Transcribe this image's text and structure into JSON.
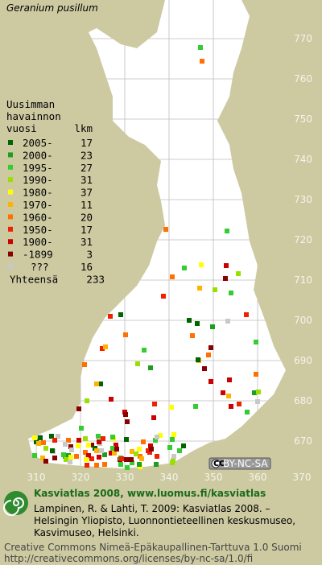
{
  "title": "Geranium pusillum",
  "legend": {
    "heading": [
      "Uusimman",
      "havainnon",
      "vuosi"
    ],
    "count_heading": "lkm",
    "rows": [
      {
        "label": "2005-",
        "count": 17,
        "color": "#006400"
      },
      {
        "label": "2000-",
        "count": 23,
        "color": "#1e9e1e"
      },
      {
        "label": "1995-",
        "count": 27,
        "color": "#33cc33"
      },
      {
        "label": "1990-",
        "count": 31,
        "color": "#99e000"
      },
      {
        "label": "1980-",
        "count": 37,
        "color": "#ffff00"
      },
      {
        "label": "1970-",
        "count": 11,
        "color": "#ffb300"
      },
      {
        "label": "1960-",
        "count": 20,
        "color": "#ff7000"
      },
      {
        "label": "1950-",
        "count": 17,
        "color": "#ee2200"
      },
      {
        "label": "1900-",
        "count": 31,
        "color": "#cc0000"
      },
      {
        "label": "-1899",
        "count": 3,
        "color": "#880000"
      },
      {
        "label": "???",
        "count": 16,
        "color": "#c8c8c8"
      }
    ],
    "total_label": "Yhteensä",
    "total": 233
  },
  "xticks": [
    310,
    320,
    330,
    340,
    350,
    360,
    370
  ],
  "yticks": [
    670,
    680,
    690,
    700,
    710,
    720,
    730,
    740,
    750,
    760,
    770
  ],
  "license_badge": "BY-NC-SA",
  "footer": {
    "heading": "Kasviatlas 2008, www.luomus.fi/kasviatlas",
    "citation": [
      "Lampinen, R. & Lahti, T. 2009: Kasviatlas 2008. –",
      "Helsingin Yliopisto, Luonnontieteellinen keskusmuseo,",
      "Kasvimuseo, Helsinki."
    ],
    "license": [
      "Creative Commons Nimeä-Epäkaupallinen-Tarttuva 1.0 Suomi",
      "http://creativecommons.org/licenses/by-nc-sa/1.0/fi"
    ]
  }
}
